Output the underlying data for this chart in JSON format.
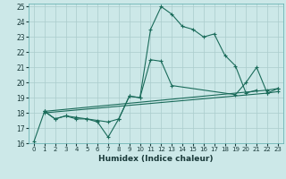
{
  "xlabel": "Humidex (Indice chaleur)",
  "bg_color": "#cce8e8",
  "grid_color": "#aacccc",
  "line_color": "#1a6b5a",
  "xlim": [
    -0.5,
    23.5
  ],
  "ylim": [
    16,
    25.2
  ],
  "xticks": [
    0,
    1,
    2,
    3,
    4,
    5,
    6,
    7,
    8,
    9,
    10,
    11,
    12,
    13,
    14,
    15,
    16,
    17,
    18,
    19,
    20,
    21,
    22,
    23
  ],
  "yticks": [
    16,
    17,
    18,
    19,
    20,
    21,
    22,
    23,
    24,
    25
  ],
  "line1_x": [
    0,
    1,
    2,
    3,
    4,
    5,
    6,
    7,
    8,
    9,
    10,
    11,
    12,
    13,
    14,
    15,
    16,
    17,
    18,
    19,
    20,
    21
  ],
  "line1_y": [
    16.1,
    18.1,
    17.6,
    17.8,
    17.6,
    17.6,
    17.4,
    16.4,
    17.6,
    19.1,
    19.0,
    23.5,
    25.0,
    24.5,
    23.7,
    23.5,
    23.0,
    23.2,
    21.8,
    21.1,
    19.3,
    19.5
  ],
  "line2_x": [
    1,
    2,
    3,
    4,
    5,
    6,
    7,
    8,
    9,
    10,
    11,
    12,
    13,
    19,
    20,
    21,
    22,
    23
  ],
  "line2_y": [
    18.1,
    17.6,
    17.8,
    17.7,
    17.6,
    17.5,
    17.4,
    17.6,
    19.1,
    19.0,
    21.5,
    21.4,
    19.8,
    19.2,
    20.0,
    21.0,
    19.3,
    19.6
  ],
  "line3_x": [
    1,
    22,
    23
  ],
  "line3_y": [
    18.0,
    19.3,
    19.4
  ],
  "line4_x": [
    1,
    22,
    23
  ],
  "line4_y": [
    18.1,
    19.5,
    19.6
  ],
  "xlabel_fontsize": 6.5,
  "tick_fontsize": 5.0
}
